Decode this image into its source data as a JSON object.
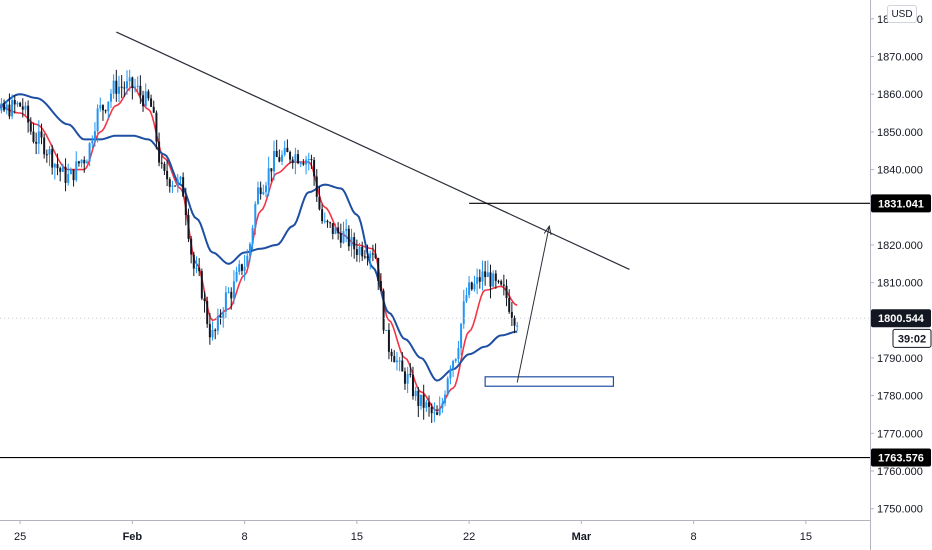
{
  "currency": "USD",
  "colors": {
    "up": "#2196f3",
    "down": "#131722",
    "ma_fast": "#f23645",
    "ma_slow": "#1e4fa3",
    "trendline": "#2a2e39",
    "level": "#000000",
    "last_price_badge": "#131722",
    "zone": "#1e4fa3"
  },
  "chart_data": {
    "type": "candlestick",
    "y_axis": {
      "range": [
        1747,
        1885
      ],
      "ticks": [
        1750,
        1760,
        1770,
        1780,
        1790,
        1800,
        1810,
        1820,
        1830,
        1840,
        1850,
        1860,
        1870,
        1880
      ],
      "tick_labels": [
        "1750.000",
        "1760.000",
        "1770.000",
        "1780.000",
        "1790.000",
        "1800.000",
        "1810.000",
        "1820.000",
        "1830.000",
        "1840.000",
        "1850.000",
        "1860.000",
        "1870.000",
        "1880.000"
      ],
      "grid": false
    },
    "x_axis": {
      "labels": [
        "25",
        "Feb",
        "8",
        "15",
        "22",
        "Mar",
        "8",
        "15"
      ],
      "label_dates": [
        "2021-01-25",
        "2021-02-01",
        "2021-02-08",
        "2021-02-15",
        "2021-02-22",
        "2021-03-01",
        "2021-03-08",
        "2021-03-15"
      ],
      "range": [
        "2021-01-22",
        "2021-03-19"
      ]
    },
    "price_badges": [
      {
        "label": "1831.041",
        "value": 1831.041,
        "style": "level"
      },
      {
        "label": "1800.544",
        "value": 1800.544,
        "style": "last"
      },
      {
        "label": "39:02",
        "value": 1795.2,
        "style": "countdown"
      },
      {
        "label": "1763.576",
        "value": 1763.576,
        "style": "level"
      }
    ],
    "horizontal_levels": [
      {
        "value": 1831.041,
        "from": "2021-02-22",
        "to": "2021-03-19"
      },
      {
        "value": 1763.576,
        "from": "2021-01-22",
        "to": "2021-03-19"
      }
    ],
    "last_price": 1800.544,
    "trendline": {
      "from": [
        "2021-01-31",
        1876.5
      ],
      "to": [
        "2021-03-04",
        1813.5
      ]
    },
    "arrow": {
      "from": [
        "2021-02-25",
        1783.5
      ],
      "to": [
        "2021-02-27",
        1825
      ]
    },
    "zone": {
      "from": [
        "2021-02-23",
        1782.5
      ],
      "to": [
        "2021-03-03",
        1785
      ]
    },
    "series": [
      {
        "kind": "candles",
        "timeframe": "4h",
        "knots": [
          [
            "2021-01-22",
            1867
          ],
          [
            "2021-01-23",
            1854
          ],
          [
            "2021-01-25",
            1857
          ],
          [
            "2021-01-26",
            1848
          ],
          [
            "2021-01-28",
            1838
          ],
          [
            "2021-01-29",
            1843
          ],
          [
            "2021-01-30",
            1856
          ],
          [
            "2021-01-31",
            1862
          ],
          [
            "2021-02-01",
            1862
          ],
          [
            "2021-02-02",
            1858
          ],
          [
            "2021-02-03",
            1838
          ],
          [
            "2021-02-04",
            1836
          ],
          [
            "2021-02-05",
            1812
          ],
          [
            "2021-02-06",
            1796
          ],
          [
            "2021-02-07",
            1807
          ],
          [
            "2021-02-08",
            1815
          ],
          [
            "2021-02-09",
            1836
          ],
          [
            "2021-02-10",
            1843
          ],
          [
            "2021-02-11",
            1844
          ],
          [
            "2021-02-12",
            1843
          ],
          [
            "2021-02-13",
            1825
          ],
          [
            "2021-02-14",
            1823
          ],
          [
            "2021-02-15",
            1819
          ],
          [
            "2021-02-16",
            1819
          ],
          [
            "2021-02-17",
            1793
          ],
          [
            "2021-02-18",
            1785
          ],
          [
            "2021-02-19",
            1778
          ],
          [
            "2021-02-20",
            1774
          ],
          [
            "2021-02-21",
            1790
          ],
          [
            "2021-02-22",
            1808
          ],
          [
            "2021-02-23",
            1812
          ],
          [
            "2021-02-24",
            1808
          ],
          [
            "2021-02-25",
            1800.5
          ]
        ]
      },
      {
        "kind": "line",
        "color": "#f23645",
        "knots": [
          [
            "2021-01-22",
            1867
          ],
          [
            "2021-01-23",
            1858
          ],
          [
            "2021-01-25",
            1855
          ],
          [
            "2021-01-26",
            1852
          ],
          [
            "2021-01-28",
            1840
          ],
          [
            "2021-01-29",
            1840
          ],
          [
            "2021-01-30",
            1850
          ],
          [
            "2021-01-31",
            1857
          ],
          [
            "2021-02-01",
            1862
          ],
          [
            "2021-02-02",
            1856
          ],
          [
            "2021-02-03",
            1843
          ],
          [
            "2021-02-04",
            1835
          ],
          [
            "2021-02-05",
            1815
          ],
          [
            "2021-02-06",
            1800
          ],
          [
            "2021-02-07",
            1803
          ],
          [
            "2021-02-08",
            1812
          ],
          [
            "2021-02-09",
            1829
          ],
          [
            "2021-02-10",
            1839
          ],
          [
            "2021-02-11",
            1842
          ],
          [
            "2021-02-12",
            1842
          ],
          [
            "2021-02-13",
            1830
          ],
          [
            "2021-02-14",
            1823
          ],
          [
            "2021-02-15",
            1820
          ],
          [
            "2021-02-16",
            1819
          ],
          [
            "2021-02-17",
            1800
          ],
          [
            "2021-02-18",
            1790
          ],
          [
            "2021-02-19",
            1781
          ],
          [
            "2021-02-20",
            1776
          ],
          [
            "2021-02-21",
            1782
          ],
          [
            "2021-02-22",
            1797
          ],
          [
            "2021-02-23",
            1808
          ],
          [
            "2021-02-24",
            1809
          ],
          [
            "2021-02-25",
            1804
          ]
        ]
      },
      {
        "kind": "line",
        "color": "#1e4fa3",
        "knots": [
          [
            "2021-01-22",
            1848
          ],
          [
            "2021-01-23",
            1855
          ],
          [
            "2021-01-25",
            1860
          ],
          [
            "2021-01-26",
            1859
          ],
          [
            "2021-01-28",
            1852
          ],
          [
            "2021-01-29",
            1848
          ],
          [
            "2021-01-30",
            1848
          ],
          [
            "2021-01-31",
            1849
          ],
          [
            "2021-02-01",
            1849
          ],
          [
            "2021-02-02",
            1848
          ],
          [
            "2021-02-03",
            1844
          ],
          [
            "2021-02-04",
            1836
          ],
          [
            "2021-02-05",
            1827
          ],
          [
            "2021-02-06",
            1818
          ],
          [
            "2021-02-07",
            1815
          ],
          [
            "2021-02-08",
            1818
          ],
          [
            "2021-02-09",
            1819
          ],
          [
            "2021-02-10",
            1820
          ],
          [
            "2021-02-11",
            1825
          ],
          [
            "2021-02-12",
            1834
          ],
          [
            "2021-02-13",
            1836
          ],
          [
            "2021-02-14",
            1835
          ],
          [
            "2021-02-15",
            1828
          ],
          [
            "2021-02-16",
            1814
          ],
          [
            "2021-02-17",
            1802
          ],
          [
            "2021-02-18",
            1795
          ],
          [
            "2021-02-19",
            1790
          ],
          [
            "2021-02-20",
            1784
          ],
          [
            "2021-02-21",
            1787
          ],
          [
            "2021-02-22",
            1791
          ],
          [
            "2021-02-23",
            1793
          ],
          [
            "2021-02-24",
            1796
          ],
          [
            "2021-02-25",
            1797
          ]
        ]
      }
    ]
  }
}
